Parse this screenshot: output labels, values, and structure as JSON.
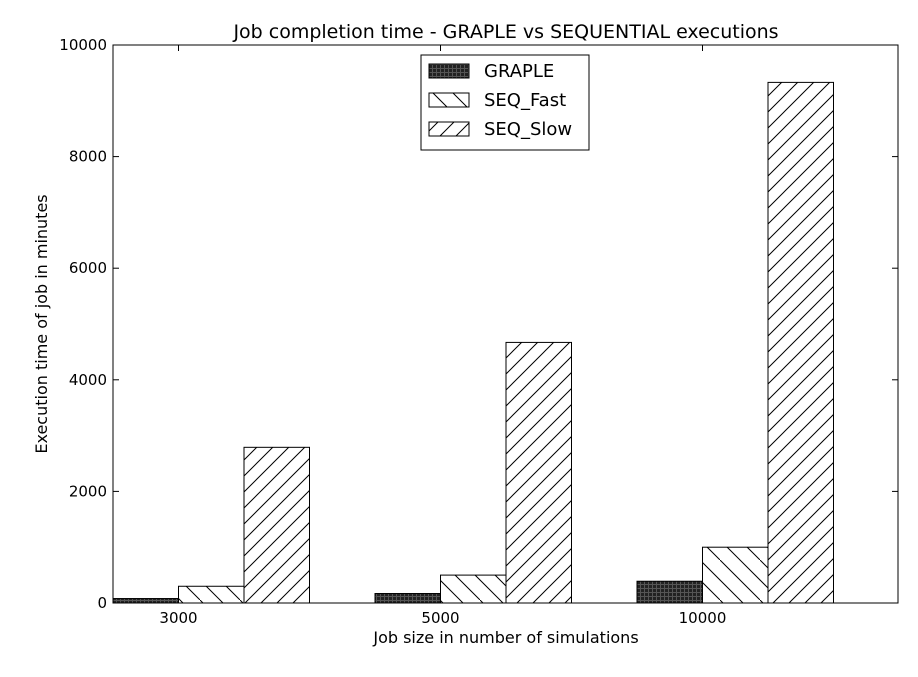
{
  "chart_data": {
    "type": "bar",
    "title": "Job completion time - GRAPLE vs SEQUENTIAL executions",
    "xlabel": "Job size in number of simulations",
    "ylabel": "Execution time of job in minutes",
    "categories": [
      "3000",
      "5000",
      "10000"
    ],
    "ylim": [
      0,
      10000
    ],
    "yticks": [
      0,
      2000,
      4000,
      6000,
      8000,
      10000
    ],
    "series": [
      {
        "name": "GRAPLE",
        "values": [
          80,
          170,
          390
        ],
        "pattern": "grid"
      },
      {
        "name": "SEQ_Fast",
        "values": [
          300,
          500,
          1000
        ],
        "pattern": "backslash"
      },
      {
        "name": "SEQ_Slow",
        "values": [
          2790,
          4670,
          9330
        ],
        "pattern": "slash"
      }
    ],
    "grid": false,
    "legend_position": "top-center"
  }
}
